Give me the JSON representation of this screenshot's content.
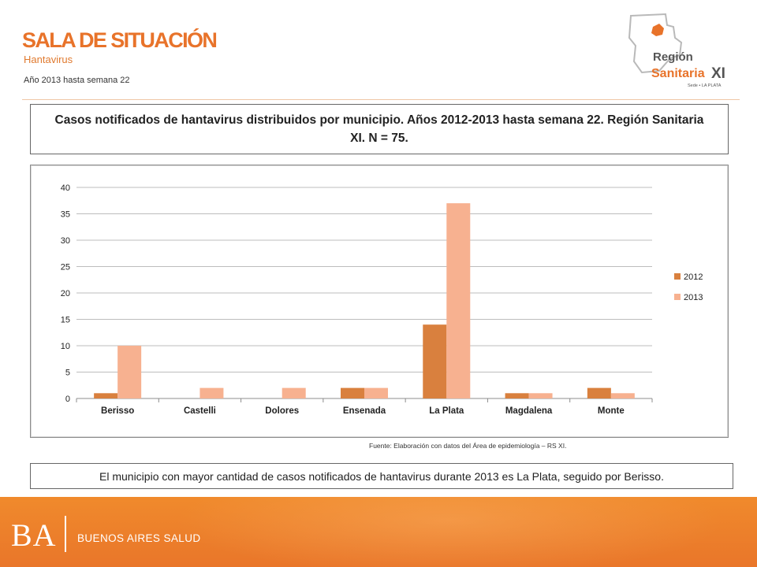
{
  "header": {
    "title": "SALA DE SITUACIÓN",
    "subtitle": "Hantavirus",
    "period": "Año 2013 hasta semana 22"
  },
  "logo": {
    "line1": "Región",
    "line2": "Sanitaria",
    "numeral": "XI",
    "tagline": "Sede • LA PLATA",
    "accent_color": "#e8732a",
    "icon": "province-map-icon"
  },
  "chart_title": "Casos notificados de hantavirus distribuidos por municipio. Años 2012-2013 hasta semana 22. Región Sanitaria XI. N = 75.",
  "chart_data": {
    "type": "bar",
    "categories": [
      "Berisso",
      "Castelli",
      "Dolores",
      "Ensenada",
      "La Plata",
      "Magdalena",
      "Monte"
    ],
    "series": [
      {
        "name": "2012",
        "values": [
          1,
          0,
          0,
          2,
          14,
          1,
          2
        ],
        "color": "#d9803e"
      },
      {
        "name": "2013",
        "values": [
          10,
          2,
          2,
          2,
          37,
          1,
          1
        ],
        "color": "#f7b190"
      }
    ],
    "ylim": [
      0,
      40
    ],
    "yticks": [
      "0",
      "5",
      "10",
      "15",
      "20",
      "25",
      "30",
      "35",
      "40"
    ],
    "grid": true,
    "legend": "right"
  },
  "source_note": "Fuente: Elaboración con datos del Área de epidemiología – RS XI.",
  "summary": "El municipio con mayor cantidad de casos notificados de hantavirus durante 2013 es La Plata, seguido por Berisso.",
  "footer": {
    "logo_text": "BA",
    "label": "BUENOS AIRES SALUD",
    "color": "#ee8230"
  }
}
